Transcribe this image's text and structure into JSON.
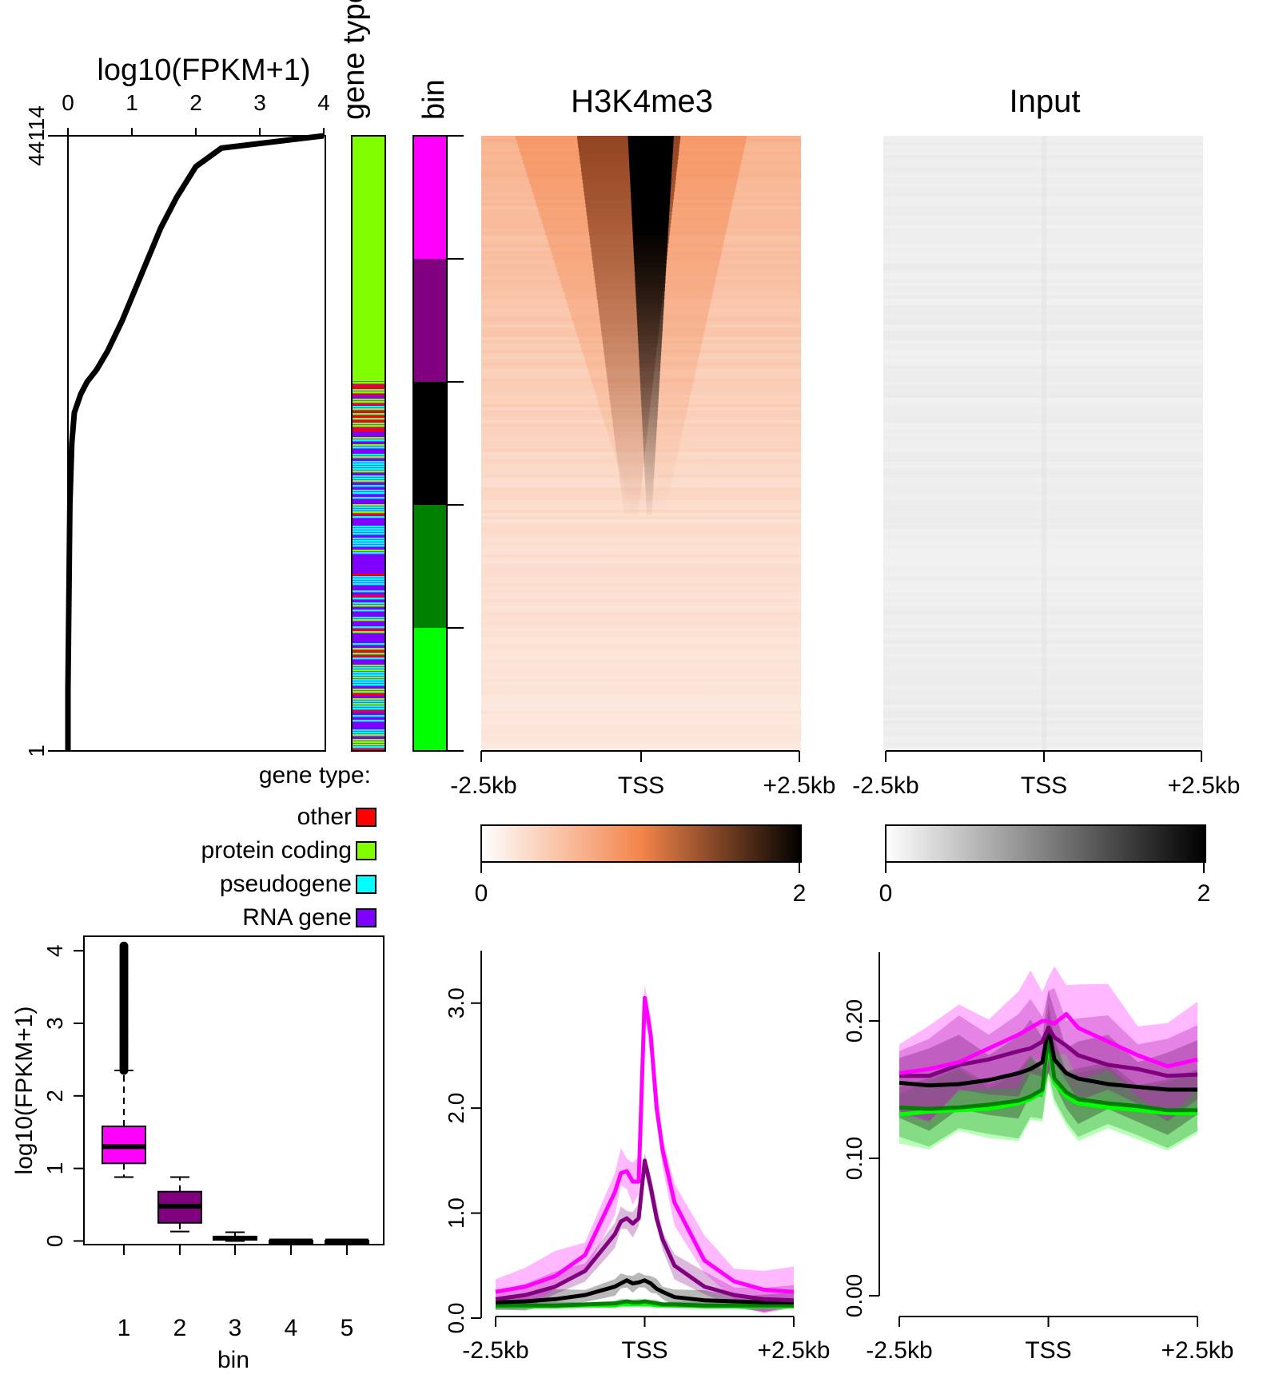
{
  "colors": {
    "magenta": "#ff00ff",
    "purple": "#800080",
    "black": "#000000",
    "darkgreen": "#008000",
    "green": "#00ff00",
    "other": "#ff0000",
    "protein_coding": "#80ff00",
    "pseudogene": "#00ffff",
    "rna_gene": "#8000ff",
    "h3k4me3_ramp": [
      "#ffffff",
      "#f4844a",
      "#000000"
    ],
    "input_ramp": [
      "#ffffff",
      "#808080",
      "#000000"
    ]
  },
  "chart_data": [
    {
      "id": "expression-ranking",
      "type": "line",
      "title": "log10(FPKM+1)",
      "xlim": [
        0,
        4
      ],
      "xticks": [
        "0",
        "1",
        "2",
        "3",
        "4"
      ],
      "ylim": [
        1,
        44114
      ],
      "yticks": [
        "1",
        "44114"
      ],
      "series": [
        {
          "points_rank_fraction_vs_value": [
            [
              0.0,
              0.0
            ],
            [
              0.1,
              0.0
            ],
            [
              0.2,
              0.01
            ],
            [
              0.3,
              0.02
            ],
            [
              0.4,
              0.03
            ],
            [
              0.5,
              0.06
            ],
            [
              0.55,
              0.1
            ],
            [
              0.58,
              0.2
            ],
            [
              0.6,
              0.3
            ],
            [
              0.62,
              0.45
            ],
            [
              0.65,
              0.62
            ],
            [
              0.7,
              0.85
            ],
            [
              0.75,
              1.05
            ],
            [
              0.8,
              1.25
            ],
            [
              0.85,
              1.45
            ],
            [
              0.9,
              1.7
            ],
            [
              0.95,
              2.0
            ],
            [
              0.98,
              2.4
            ],
            [
              1.0,
              4.0
            ]
          ]
        }
      ]
    },
    {
      "id": "gene-type-bar",
      "type": "heatmap",
      "title": "gene type",
      "legend_title": "gene type:",
      "categories": [
        "other",
        "protein coding",
        "pseudogene",
        "RNA gene"
      ]
    },
    {
      "id": "bin-bar",
      "type": "heatmap",
      "title": "bin",
      "bins": [
        "1",
        "2",
        "3",
        "4",
        "5"
      ]
    },
    {
      "id": "h3k4me3-heatmap",
      "type": "heatmap",
      "title": "H3K4me3",
      "xticks": [
        "-2.5kb",
        "TSS",
        "+2.5kb"
      ],
      "color_range": [
        0,
        2
      ],
      "colorbar_ticks": [
        "0",
        "2"
      ]
    },
    {
      "id": "input-heatmap",
      "type": "heatmap",
      "title": "Input",
      "xticks": [
        "-2.5kb",
        "TSS",
        "+2.5kb"
      ],
      "color_range": [
        0,
        2
      ],
      "colorbar_ticks": [
        "0",
        "2"
      ]
    },
    {
      "id": "expression-boxplot",
      "type": "boxplot",
      "xlabel": "bin",
      "ylabel": "log10(FPKM+1)",
      "categories": [
        "1",
        "2",
        "3",
        "4",
        "5"
      ],
      "yticks": [
        "0",
        "1",
        "2",
        "3",
        "4"
      ],
      "ylim": [
        -0.05,
        4.2
      ],
      "boxes": [
        {
          "min": 0.88,
          "q1": 1.07,
          "median": 1.3,
          "q3": 1.58,
          "max": 2.35,
          "outliers_range": [
            2.35,
            4.08
          ]
        },
        {
          "min": 0.13,
          "q1": 0.25,
          "median": 0.48,
          "q3": 0.68,
          "max": 0.88
        },
        {
          "min": 0.0,
          "q1": 0.02,
          "median": 0.04,
          "q3": 0.06,
          "max": 0.12
        },
        {
          "min": -0.01,
          "q1": -0.005,
          "median": 0.0,
          "q3": 0.005,
          "max": 0.02
        },
        {
          "min": -0.005,
          "q1": -0.003,
          "median": 0.0,
          "q3": 0.003,
          "max": 0.005
        }
      ]
    },
    {
      "id": "h3k4me3-profile",
      "type": "line",
      "xticks": [
        "-2.5kb",
        "TSS",
        "+2.5kb"
      ],
      "xlim": [
        -2500,
        2500
      ],
      "ylim": [
        0,
        3.5
      ],
      "yticks": [
        "0.0",
        "1.0",
        "2.0",
        "3.0"
      ],
      "x": [
        -2500,
        -2000,
        -1500,
        -1000,
        -500,
        -400,
        -300,
        -200,
        -100,
        0,
        100,
        200,
        300,
        500,
        1000,
        1500,
        2000,
        2500
      ],
      "series": [
        {
          "bin": "1",
          "values": [
            0.25,
            0.3,
            0.4,
            0.6,
            1.2,
            1.38,
            1.4,
            1.3,
            1.3,
            3.05,
            2.7,
            2.0,
            1.6,
            1.1,
            0.55,
            0.35,
            0.27,
            0.25
          ],
          "band": 0.2
        },
        {
          "bin": "2",
          "values": [
            0.18,
            0.22,
            0.3,
            0.45,
            0.8,
            0.92,
            0.95,
            0.9,
            0.95,
            1.5,
            1.25,
            0.95,
            0.75,
            0.5,
            0.3,
            0.22,
            0.18,
            0.17
          ],
          "band": 0.12
        },
        {
          "bin": "3",
          "values": [
            0.15,
            0.16,
            0.18,
            0.22,
            0.3,
            0.33,
            0.36,
            0.33,
            0.34,
            0.36,
            0.33,
            0.28,
            0.25,
            0.2,
            0.17,
            0.16,
            0.15,
            0.15
          ],
          "band": 0.08
        },
        {
          "bin": "4",
          "values": [
            0.12,
            0.12,
            0.12,
            0.13,
            0.14,
            0.15,
            0.16,
            0.15,
            0.15,
            0.16,
            0.15,
            0.14,
            0.13,
            0.13,
            0.12,
            0.12,
            0.12,
            0.12
          ],
          "band": 0.03
        },
        {
          "bin": "5",
          "values": [
            0.11,
            0.11,
            0.11,
            0.12,
            0.12,
            0.13,
            0.13,
            0.13,
            0.13,
            0.13,
            0.13,
            0.12,
            0.12,
            0.12,
            0.11,
            0.11,
            0.11,
            0.11
          ],
          "band": 0.02
        }
      ]
    },
    {
      "id": "input-profile",
      "type": "line",
      "xticks": [
        "-2.5kb",
        "TSS",
        "+2.5kb"
      ],
      "xlim": [
        -2500,
        2500
      ],
      "ylim": [
        0,
        0.25
      ],
      "yticks": [
        "0.00",
        "0.10",
        "0.20"
      ],
      "x": [
        -2500,
        -2000,
        -1500,
        -1000,
        -500,
        -300,
        -100,
        0,
        100,
        300,
        500,
        1000,
        1500,
        2000,
        2500
      ],
      "series": [
        {
          "bin": "1",
          "values": [
            0.162,
            0.165,
            0.17,
            0.18,
            0.19,
            0.195,
            0.2,
            0.2,
            0.198,
            0.205,
            0.195,
            0.185,
            0.175,
            0.167,
            0.172
          ],
          "band": 0.035
        },
        {
          "bin": "2",
          "values": [
            0.16,
            0.16,
            0.168,
            0.172,
            0.178,
            0.18,
            0.185,
            0.195,
            0.188,
            0.182,
            0.175,
            0.168,
            0.165,
            0.16,
            0.161
          ],
          "band": 0.03
        },
        {
          "bin": "3",
          "values": [
            0.155,
            0.153,
            0.154,
            0.157,
            0.162,
            0.165,
            0.17,
            0.195,
            0.172,
            0.162,
            0.158,
            0.154,
            0.152,
            0.15,
            0.15
          ],
          "band": 0.03
        },
        {
          "bin": "4",
          "values": [
            0.137,
            0.136,
            0.137,
            0.139,
            0.142,
            0.145,
            0.15,
            0.19,
            0.158,
            0.148,
            0.143,
            0.14,
            0.138,
            0.135,
            0.135
          ],
          "band": 0.025
        },
        {
          "bin": "5",
          "values": [
            0.132,
            0.134,
            0.135,
            0.136,
            0.14,
            0.143,
            0.148,
            0.185,
            0.155,
            0.145,
            0.14,
            0.137,
            0.135,
            0.133,
            0.133
          ],
          "band": 0.025
        }
      ]
    }
  ]
}
